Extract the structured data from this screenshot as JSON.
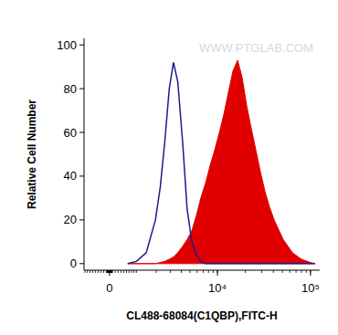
{
  "chart_data": {
    "type": "area",
    "x_label": "CL488-68084(C1QBP),FITC-H",
    "y_label": "Relative Cell Number",
    "annotations": [
      "WWW.PTGLAB.COM"
    ],
    "log": "x",
    "grid": false,
    "xlim": [
      -940,
      125600
    ],
    "xticks": [
      0,
      {
        "value": 10000,
        "label": "10⁴"
      },
      {
        "value": 100000,
        "label": "10⁵"
      }
    ],
    "ylim": [
      -3,
      103
    ],
    "yticks": [
      0,
      20,
      40,
      60,
      80,
      100
    ],
    "x": [
      650,
      1000,
      1450,
      1950,
      2250,
      2550,
      2900,
      3250,
      3650,
      4150,
      4650,
      5250,
      5900,
      6600,
      7450,
      8350,
      9350,
      10500,
      11700,
      13100,
      14700,
      16500,
      18500,
      20700,
      23100,
      25900,
      29000,
      32500,
      36300,
      40700,
      51000,
      64000,
      80000,
      100000,
      112000
    ],
    "series": [
      {
        "type": "line",
        "color": "#1c1c8e",
        "values": [
          0,
          1,
          5,
          20,
          35,
          55,
          80,
          92,
          83,
          55,
          25,
          10,
          4,
          1,
          0,
          0,
          0,
          0,
          0,
          0,
          0,
          0,
          0,
          0,
          0,
          0,
          0,
          0,
          0,
          0,
          0,
          0,
          0,
          0,
          0
        ]
      },
      {
        "type": "area",
        "color": "#e00000",
        "values": [
          0,
          0,
          0,
          0,
          0.5,
          1,
          2,
          3,
          5,
          8,
          11,
          15,
          22,
          30,
          37,
          45,
          52,
          60,
          68,
          78,
          88,
          93,
          85,
          72,
          62,
          52,
          42,
          33,
          26,
          20,
          11,
          5,
          2,
          0.5,
          0
        ]
      }
    ]
  }
}
